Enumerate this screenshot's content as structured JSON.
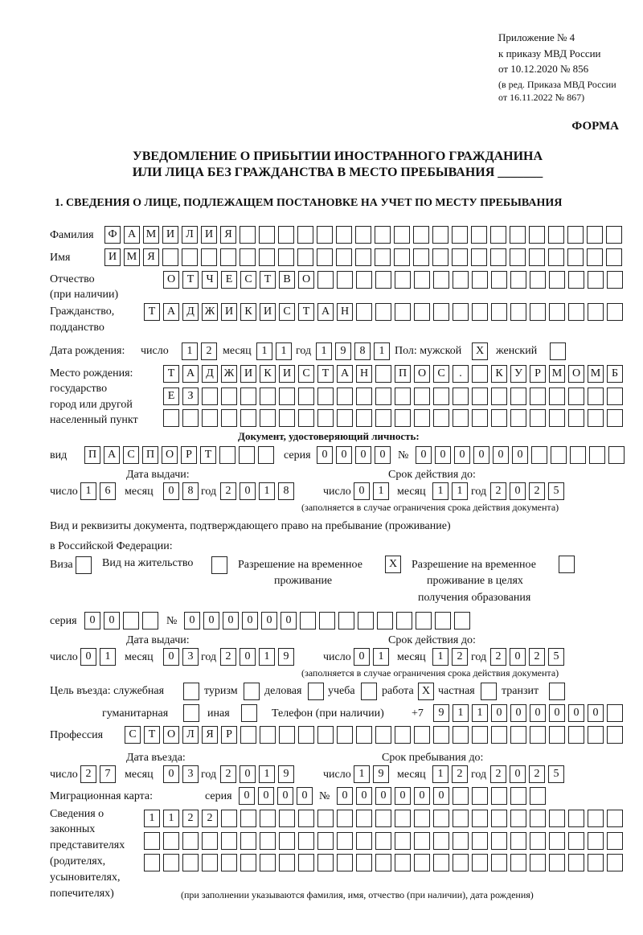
{
  "header": {
    "appendix": "Приложение № 4",
    "order": "к приказу МВД России",
    "order_date": "от 10.12.2020 № 856",
    "edition1": "(в ред. Приказа МВД России",
    "edition2": "от 16.11.2022 № 867)",
    "form_label": "ФОРМА",
    "title1": "УВЕДОМЛЕНИЕ О ПРИБЫТИИ ИНОСТРАННОГО ГРАЖДАНИНА",
    "title2": "ИЛИ ЛИЦА БЕЗ ГРАЖДАНСТВА В МЕСТО ПРЕБЫВАНИЯ _______",
    "section1": "1. СВЕДЕНИЯ О ЛИЦЕ, ПОДЛЕЖАЩЕМ ПОСТАНОВКЕ НА УЧЕТ ПО МЕСТУ ПРЕБЫВАНИЯ"
  },
  "labels": {
    "surname": "Фамилия",
    "name": "Имя",
    "patronymic1": "Отчество",
    "patronymic2": "(при наличии)",
    "citizenship1": "Гражданство,",
    "citizenship2": "подданство",
    "birth_date": "Дата рождения:",
    "day": "число",
    "month": "месяц",
    "year": "год",
    "sex": "Пол: мужской",
    "female": "женский",
    "birthplace1": "Место рождения:",
    "birthplace2": "государство",
    "birthplace3": "город или другой",
    "birthplace4": "населенный пункт",
    "id_doc": "Документ, удостоверяющий личность:",
    "kind": "вид",
    "series": "серия",
    "number": "№",
    "issue_date": "Дата выдачи:",
    "valid_until": "Срок действия до:",
    "valid_note": "(заполняется в случае ограничения срока действия документа)",
    "residence_doc1": "Вид и реквизиты документа, подтверждающего право на пребывание (проживание)",
    "residence_doc2": "в Российской Федерации:",
    "visa": "Виза",
    "residence_permit": "Вид на жительство",
    "temp_permit1": "Разрешение на временное",
    "temp_permit2": "проживание",
    "temp_edu1": "Разрешение на временное",
    "temp_edu2": "проживание в целях",
    "temp_edu3": "получения образования",
    "purpose": "Цель въезда: служебная",
    "tourism": "туризм",
    "business": "деловая",
    "study": "учеба",
    "work": "работа",
    "private": "частная",
    "transit": "транзит",
    "humanitarian": "гуманитарная",
    "other": "иная",
    "phone": "Телефон (при наличии)",
    "phone_prefix": "+7",
    "profession": "Профессия",
    "entry_date": "Дата въезда:",
    "stay_until": "Срок пребывания до:",
    "migration_card": "Миграционная карта:",
    "reps1": "Сведения о",
    "reps2": "законных",
    "reps3": "представителях",
    "reps4": "(родителях,",
    "reps5": "усыновителях,",
    "reps6": "попечителях)",
    "reps_note": "(при заполнении указываются фамилия, имя, отчество (при наличии), дата рождения)"
  },
  "values": {
    "surname": "ФАМИЛИЯ",
    "name": "ИМЯ",
    "patronymic": "ОТЧЕСТВО",
    "citizenship": "ТАДЖИКИСТАН",
    "birth_day": "12",
    "birth_month": "11",
    "birth_year": "1981",
    "male": "X",
    "female": "",
    "birthplace_line1": "ТАДЖИКИСТАН ПОС. КУРМОМБ",
    "birthplace_line2": "ЕЗ",
    "birthplace_line3": "",
    "id_kind": "ПАСПОРТ",
    "id_series": "0000",
    "id_number": "000000",
    "id_issue_day": "16",
    "id_issue_month": "08",
    "id_issue_year": "2018",
    "id_valid_day": "01",
    "id_valid_month": "11",
    "id_valid_year": "2025",
    "visa": "",
    "residence_permit": "",
    "temp_permit": "X",
    "temp_edu": "",
    "res_series": "00",
    "res_number": "000000",
    "res_issue_day": "01",
    "res_issue_month": "03",
    "res_issue_year": "2019",
    "res_valid_day": "01",
    "res_valid_month": "12",
    "res_valid_year": "2025",
    "purpose_official": "",
    "purpose_tourism": "",
    "purpose_business": "",
    "purpose_study": "",
    "purpose_work": "X",
    "purpose_private": "",
    "purpose_transit": "",
    "purpose_humanitarian": "",
    "purpose_other": "",
    "phone": "911000000",
    "profession": "СТОЛЯР",
    "entry_day": "27",
    "entry_month": "03",
    "entry_year": "2019",
    "stay_day": "19",
    "stay_month": "12",
    "stay_year": "2025",
    "mc_series": "0000",
    "mc_number": "000000",
    "reps_line1": "1122",
    "reps_line2": "",
    "reps_line3": ""
  }
}
